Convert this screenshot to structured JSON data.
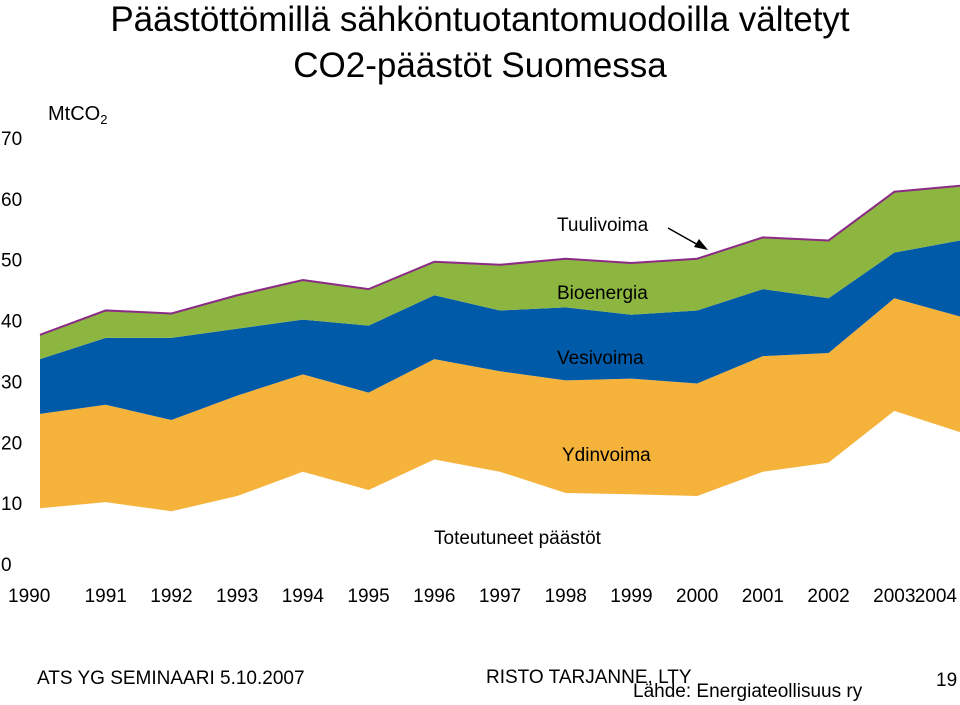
{
  "title_line1": "Päästöttömillä sähköntuotantomuodoilla vältetyt",
  "title_line2": "CO2-päästöt Suomessa",
  "unit_main": "MtCO",
  "unit_sub": "2",
  "chart_data": {
    "type": "area",
    "stacked": true,
    "title": "Päästöttömillä sähköntuotantomuodoilla vältetyt CO2-päästöt Suomessa",
    "ylabel": "MtCO2",
    "ylim": [
      0,
      70
    ],
    "yticks": [
      0,
      10,
      20,
      30,
      40,
      50,
      60,
      70
    ],
    "x": [
      "1990",
      "1991",
      "1992",
      "1993",
      "1994",
      "1995",
      "1996",
      "1997",
      "1998",
      "1999",
      "2000",
      "2001",
      "2002",
      "2003",
      "2004"
    ],
    "series": [
      {
        "name": "Toteutuneet päästöt",
        "color": "#ffffff",
        "values": [
          9,
          10,
          8.5,
          11,
          15,
          12,
          17,
          15,
          11.5,
          11.3,
          11,
          15,
          16.5,
          25,
          21.5
        ]
      },
      {
        "name": "Ydinvoima",
        "color": "#f6b33c",
        "values": [
          15.5,
          16,
          15,
          16.5,
          16,
          16,
          16.5,
          16.5,
          18.5,
          19,
          18.5,
          19,
          18,
          18.5,
          19
        ]
      },
      {
        "name": "Vesivoima",
        "color": "#005aa7",
        "values": [
          9,
          11,
          13.5,
          11,
          9,
          11,
          10.5,
          10,
          12,
          10.5,
          12,
          11,
          9,
          7.5,
          12.5
        ]
      },
      {
        "name": "Bioenergia",
        "color": "#8db641",
        "values": [
          4,
          4.5,
          4,
          5.5,
          6.5,
          6,
          5.5,
          7.5,
          8,
          8.5,
          8.5,
          8.5,
          9.5,
          10,
          9
        ]
      },
      {
        "name": "Tuulivoima",
        "color": "#8b2b86",
        "values": [
          0,
          0,
          0,
          0,
          0,
          0,
          0,
          0,
          0,
          0,
          0,
          0,
          0,
          0,
          0
        ]
      }
    ],
    "legend": "inline labels"
  },
  "footer": {
    "left": "ATS YG SEMINAARI 5.10.2007",
    "center": "RISTO TARJANNE, LTY",
    "source": "Lähde:  Energiateollisuus ry",
    "page": "19"
  }
}
